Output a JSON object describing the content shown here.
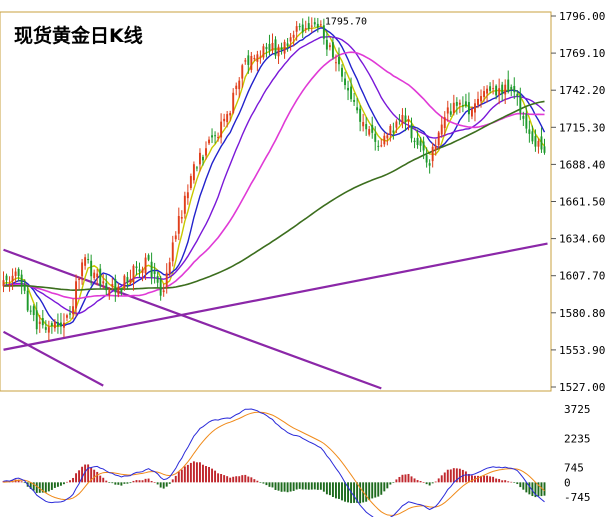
{
  "title": "现货黄金日K线",
  "chart_data": [
    {
      "type": "candlestick",
      "title": "现货黄金日K线",
      "annotation": "1795.70",
      "peak_index": 105,
      "ylim": [
        1527.0,
        1796.0
      ],
      "y_ticks": [
        "1796.00",
        "1769.10",
        "1742.20",
        "1715.30",
        "1688.40",
        "1661.50",
        "1634.60",
        "1607.70",
        "1580.80",
        "1553.90",
        "1527.00"
      ],
      "y_tick_values": [
        1796.0,
        1769.1,
        1742.2,
        1715.3,
        1688.4,
        1661.5,
        1634.6,
        1607.7,
        1580.8,
        1553.9,
        1527.0
      ],
      "candle_count": 180,
      "waypoints_index": [
        0,
        4,
        10,
        14,
        22,
        26,
        33,
        38,
        43,
        48,
        52,
        56,
        62,
        67,
        73,
        80,
        84,
        90,
        96,
        102,
        106,
        112,
        118,
        124,
        128,
        133,
        137,
        141,
        145,
        150,
        155,
        160,
        166,
        170,
        174,
        178,
        180
      ],
      "waypoints_close": [
        1600,
        1610,
        1575,
        1570,
        1578,
        1620,
        1602,
        1598,
        1612,
        1618,
        1592,
        1630,
        1680,
        1700,
        1718,
        1762,
        1770,
        1772,
        1782,
        1792,
        1780,
        1755,
        1720,
        1705,
        1712,
        1722,
        1700,
        1690,
        1718,
        1735,
        1728,
        1740,
        1745,
        1735,
        1712,
        1700,
        1696
      ],
      "colors": {
        "up": "#e03e1b",
        "down": "#1e9a2c",
        "frame": "#c9a13f"
      },
      "moving_averages": [
        {
          "period": 5,
          "color": "#c8c800"
        },
        {
          "period": 10,
          "color": "#2222cc"
        },
        {
          "period": 20,
          "color": "#7a18d8"
        },
        {
          "period": 40,
          "color": "#e03ad6"
        },
        {
          "period": 120,
          "color": "#3c6e1e"
        }
      ],
      "trendlines": [
        {
          "color": "#8b27a8",
          "from": [
            0,
            1554.0
          ],
          "to": [
            180,
            1631.0
          ]
        },
        {
          "color": "#8b27a8",
          "from": [
            0,
            1626.5
          ],
          "to": [
            125,
            1526.0
          ]
        },
        {
          "color": "#8b27a8",
          "from": [
            0,
            1567.0
          ],
          "to": [
            33,
            1528.0
          ]
        }
      ]
    },
    {
      "type": "macd",
      "ylim": [
        -745,
        3725
      ],
      "y_ticks": [
        "3725",
        "2235",
        "745",
        "0",
        "-745"
      ],
      "y_tick_values": [
        3725,
        2235,
        745,
        0,
        -745
      ],
      "colors": {
        "dif": "#2b2bd9",
        "dea": "#f08a1a",
        "up": "#c0272d",
        "down": "#1e6b1e"
      }
    }
  ]
}
